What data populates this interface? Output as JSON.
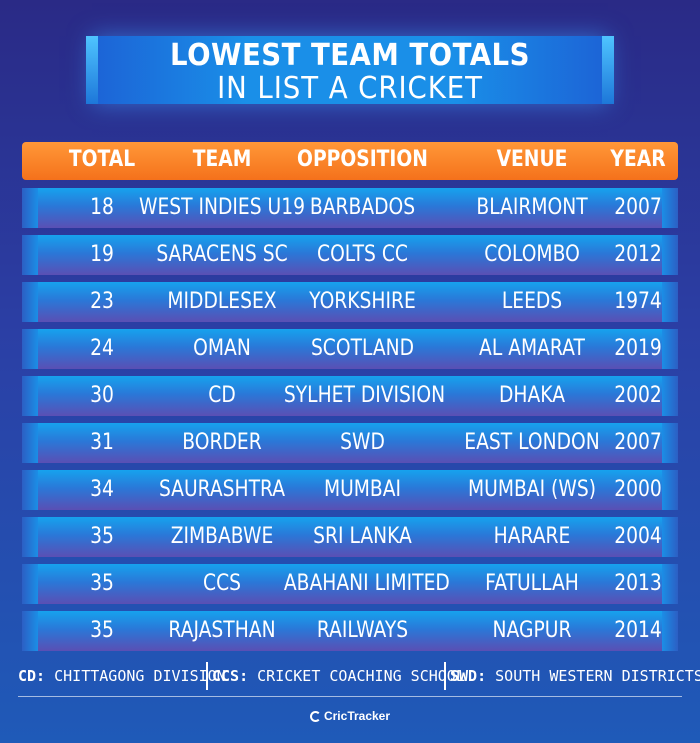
{
  "title": {
    "line1": "LOWEST TEAM TOTALS",
    "line2": "IN LIST A CRICKET"
  },
  "table": {
    "headers": [
      "TOTAL",
      "TEAM",
      "OPPOSITION",
      "VENUE",
      "YEAR"
    ],
    "rows": [
      [
        "18",
        "WEST INDIES U19",
        "BARBADOS",
        "BLAIRMONT",
        "2007"
      ],
      [
        "19",
        "SARACENS SC",
        "COLTS CC",
        "COLOMBO",
        "2012"
      ],
      [
        "23",
        "MIDDLESEX",
        "YORKSHIRE",
        "LEEDS",
        "1974"
      ],
      [
        "24",
        "OMAN",
        "SCOTLAND",
        "AL AMARAT",
        "2019"
      ],
      [
        "30",
        "CD",
        "SYLHET DIVISION",
        "DHAKA",
        "2002"
      ],
      [
        "31",
        "BORDER",
        "SWD",
        "EAST LONDON",
        "2007"
      ],
      [
        "34",
        "SAURASHTRA",
        "MUMBAI",
        "MUMBAI (WS)",
        "2000"
      ],
      [
        "35",
        "ZIMBABWE",
        "SRI LANKA",
        "HARARE",
        "2004"
      ],
      [
        "35",
        "CCS",
        "ABAHANI LIMITED",
        "FATULLAH",
        "2013"
      ],
      [
        "35",
        "RAJASTHAN",
        "RAILWAYS",
        "NAGPUR",
        "2014"
      ]
    ]
  },
  "footnotes": [
    {
      "abbr": "CD:",
      "text": "CHITTAGONG DIVISION"
    },
    {
      "abbr": "CCS:",
      "text": "CRICKET COACHING SCHOOL"
    },
    {
      "abbr": "SWD:",
      "text": "SOUTH WESTERN DISTRICTS"
    }
  ],
  "brand": "CricTracker",
  "colors": {
    "background": "#2b3fa5",
    "header_orange": "#f5711b",
    "row_blue": "#16a2ee",
    "row_purple": "#5a4fb4"
  }
}
